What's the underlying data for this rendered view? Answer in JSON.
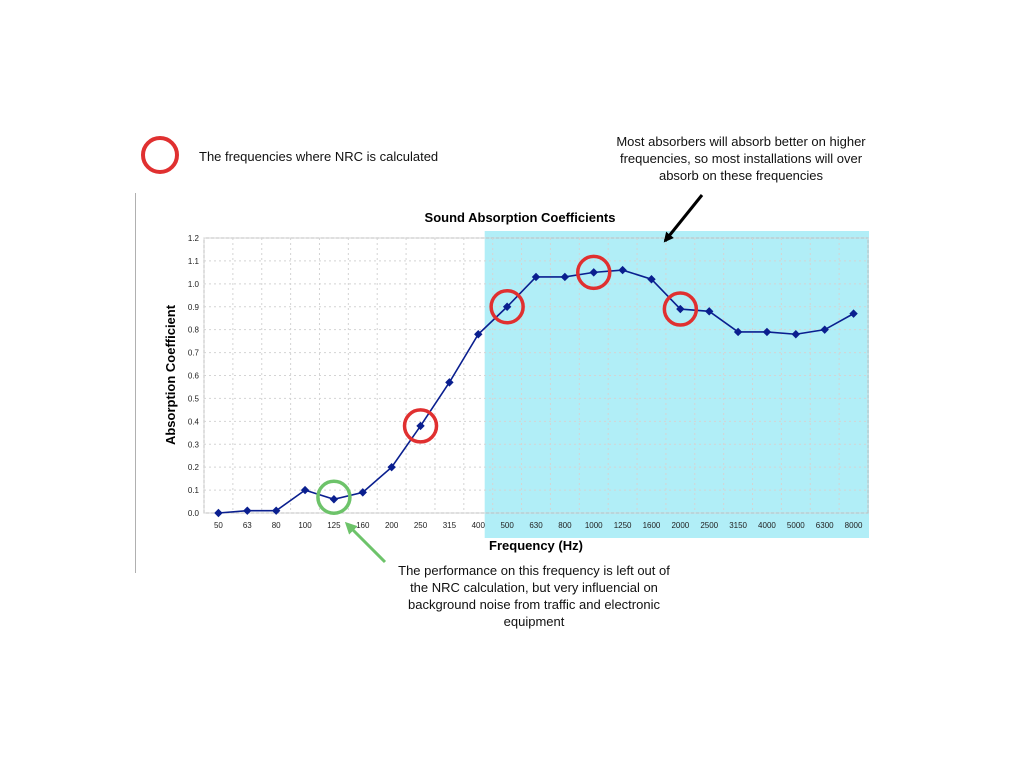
{
  "legend": {
    "text": "The frequencies where NRC is calculated",
    "marker_color": "#e03030"
  },
  "annotations": {
    "top_note": "Most absorbers will absorb better on higher frequencies, so most installations will over absorb on these frequencies",
    "bottom_note": "The performance on this frequency is left out of the NRC calculation, but very influencial on background noise from traffic and electronic equipment",
    "highlight_color": "#a8ecf6",
    "low_freq_marker_color": "#6dc36a"
  },
  "chart_data": {
    "type": "line",
    "title": "Sound Absorption Coefficients",
    "xlabel": "Frequency (Hz)",
    "ylabel": "Absorption Coefficient",
    "categories": [
      "50",
      "63",
      "80",
      "100",
      "125",
      "160",
      "200",
      "250",
      "315",
      "400",
      "500",
      "630",
      "800",
      "1000",
      "1250",
      "1600",
      "2000",
      "2500",
      "3150",
      "4000",
      "5000",
      "6300",
      "8000"
    ],
    "series": [
      {
        "name": "",
        "color": "#0a1f8f",
        "values": [
          0.0,
          0.01,
          0.01,
          0.1,
          0.06,
          0.09,
          0.2,
          0.38,
          0.57,
          0.78,
          0.9,
          1.03,
          1.03,
          1.05,
          1.06,
          1.02,
          0.89,
          0.88,
          0.79,
          0.79,
          0.78,
          0.8,
          0.87
        ]
      }
    ],
    "ylim": [
      0,
      1.2
    ],
    "yticks": [
      "0.0",
      "0.1",
      "0.2",
      "0.3",
      "0.4",
      "0.5",
      "0.6",
      "0.7",
      "0.8",
      "0.9",
      "1.0",
      "1.1",
      "1.2"
    ],
    "grid": true,
    "nrc_frequencies": [
      "250",
      "500",
      "1000",
      "2000"
    ],
    "highlighted_frequency": "125",
    "highlight_range": [
      "500",
      "8000"
    ]
  }
}
